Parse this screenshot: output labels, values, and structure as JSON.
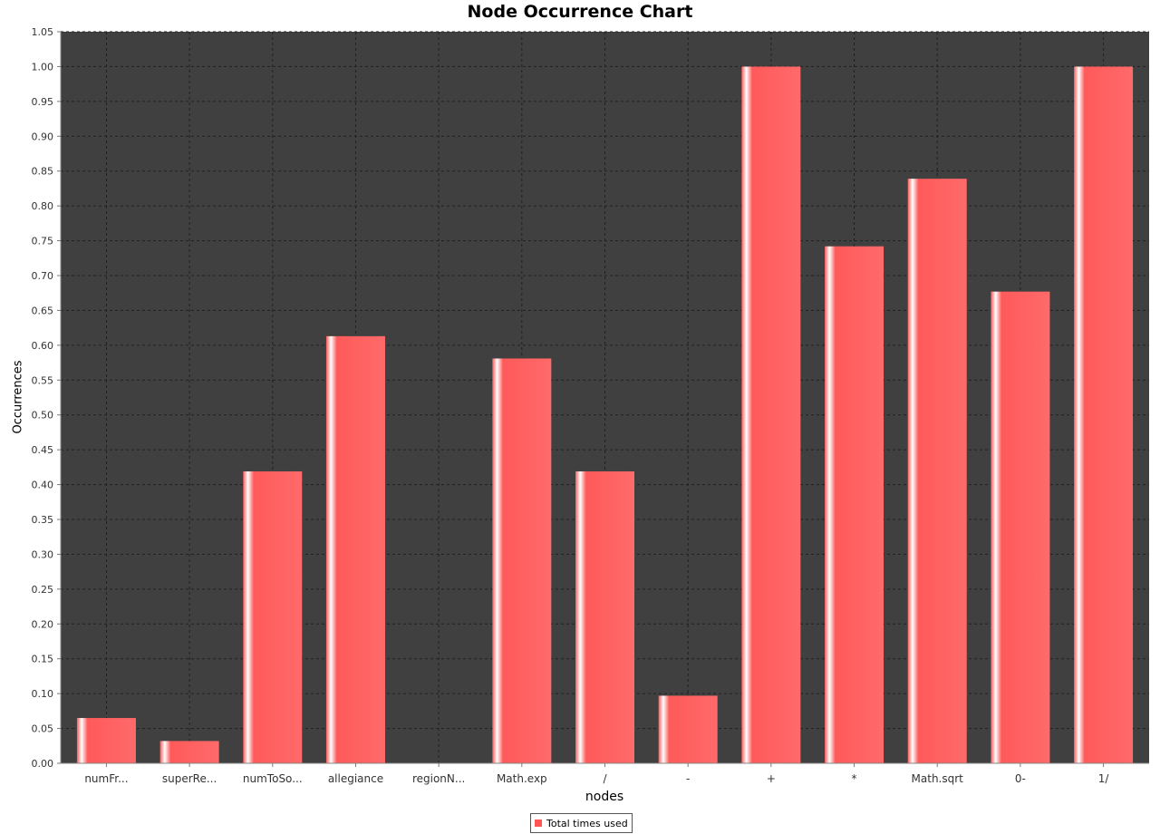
{
  "chart_data": {
    "type": "bar",
    "title": "Node Occurrence Chart",
    "xlabel": "nodes",
    "ylabel": "Occurrences",
    "categories": [
      "numFr...",
      "superRe...",
      "numToSo...",
      "allegiance",
      "regionN...",
      "Math.exp",
      "/",
      "-",
      "+",
      "*",
      "Math.sqrt",
      "0-",
      "1/"
    ],
    "series": [
      {
        "name": "Total times used",
        "values": [
          0.065,
          0.032,
          0.419,
          0.613,
          0.0,
          0.581,
          0.419,
          0.097,
          1.0,
          0.742,
          0.839,
          0.677,
          1.0
        ]
      }
    ],
    "ylim": [
      0,
      1.05
    ],
    "yticks": [
      "0.00",
      "0.05",
      "0.10",
      "0.15",
      "0.20",
      "0.25",
      "0.30",
      "0.35",
      "0.40",
      "0.45",
      "0.50",
      "0.55",
      "0.60",
      "0.65",
      "0.70",
      "0.75",
      "0.80",
      "0.85",
      "0.90",
      "0.95",
      "1.00",
      "1.05"
    ],
    "grid": true,
    "legend_position": "bottom",
    "colors": {
      "plot_background": "#404040",
      "bar": "#ff5555",
      "grid": "#202020"
    }
  }
}
